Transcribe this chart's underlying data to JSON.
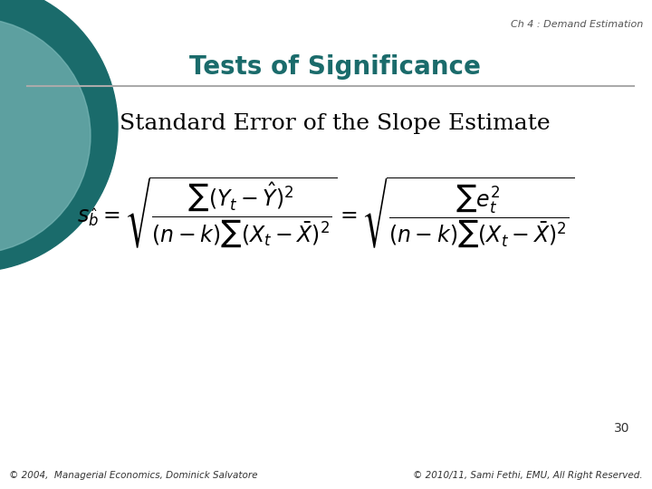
{
  "bg_color": "#ffffff",
  "header_text": "Ch 4 : Demand Estimation",
  "title_text": "Tests of Significance",
  "title_color": "#1a6b6b",
  "subtitle_text": "Standard Error of the Slope Estimate",
  "subtitle_color": "#000000",
  "line_color": "#aaaaaa",
  "page_number": "30",
  "footer_left": "© 2004,  Managerial Economics, Dominick Salvatore",
  "footer_right": "© 2010/11, Sami Fethi, EMU, All Right Reserved.",
  "footer_color": "#333333",
  "header_color": "#555555",
  "circle_color1": "#1a6b6b",
  "circle_color2": "#7ab8b8"
}
